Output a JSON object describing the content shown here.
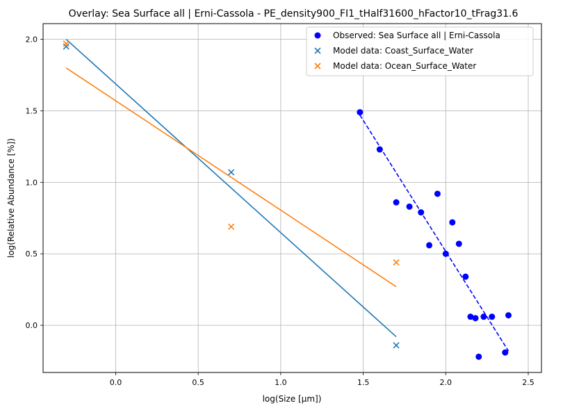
{
  "chart_data": {
    "type": "scatter",
    "title": "Overlay: Sea Surface all | Erni-Cassola - PE_density900_FI1_tHalf31600_hFactor10_tFrag31.6",
    "xlabel": "log(Size [μm])",
    "ylabel": "log(Relative Abundance [%])",
    "xlim": [
      -0.44,
      2.58
    ],
    "ylim": [
      -0.33,
      2.11
    ],
    "xticks": [
      0.0,
      0.5,
      1.0,
      1.5,
      2.0,
      2.5
    ],
    "xtick_labels": [
      "0.0",
      "0.5",
      "1.0",
      "1.5",
      "2.0",
      "2.5"
    ],
    "yticks": [
      0.0,
      0.5,
      1.0,
      1.5,
      2.0
    ],
    "ytick_labels": [
      "0.0",
      "0.5",
      "1.0",
      "1.5",
      "2.0"
    ],
    "grid": true,
    "legend_position": "top-right",
    "series": [
      {
        "name": "Observed: Sea Surface all | Erni-Cassola",
        "marker": "circle",
        "color": "#0000ff",
        "x": [
          1.48,
          1.6,
          1.7,
          1.78,
          1.85,
          1.9,
          1.95,
          2.0,
          2.04,
          2.08,
          2.12,
          2.15,
          2.18,
          2.2,
          2.23,
          2.28,
          2.36,
          2.38
        ],
        "y": [
          1.49,
          1.23,
          0.86,
          0.83,
          0.79,
          0.56,
          0.92,
          0.5,
          0.72,
          0.57,
          0.34,
          0.06,
          0.05,
          -0.22,
          0.06,
          0.06,
          -0.19,
          0.07
        ]
      },
      {
        "name": "Model data: Coast_Surface_Water",
        "marker": "x",
        "color": "#1f77b4",
        "x": [
          -0.3,
          0.7,
          1.7
        ],
        "y": [
          1.95,
          1.07,
          -0.14
        ]
      },
      {
        "name": "Model data: Ocean_Surface_Water",
        "marker": "x",
        "color": "#ff7f0e",
        "x": [
          -0.3,
          0.7,
          1.7
        ],
        "y": [
          1.97,
          0.69,
          0.44
        ]
      }
    ],
    "fit_lines": [
      {
        "color": "#0000ff",
        "style": "dashed",
        "x": [
          1.48,
          2.38
        ],
        "y": [
          1.47,
          -0.18
        ]
      },
      {
        "color": "#1f77b4",
        "style": "solid",
        "x": [
          -0.3,
          1.7
        ],
        "y": [
          2.0,
          -0.08
        ]
      },
      {
        "color": "#ff7f0e",
        "style": "solid",
        "x": [
          -0.3,
          1.7
        ],
        "y": [
          1.8,
          0.27
        ]
      }
    ]
  }
}
